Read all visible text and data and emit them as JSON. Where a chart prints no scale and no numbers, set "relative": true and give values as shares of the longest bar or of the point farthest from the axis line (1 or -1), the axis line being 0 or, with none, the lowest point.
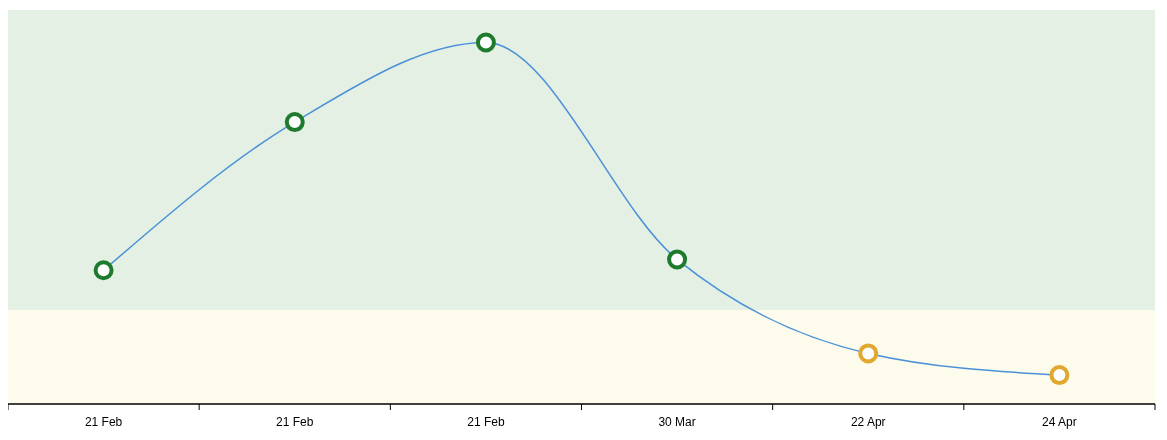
{
  "chart_data": {
    "type": "line",
    "relative": true,
    "categories": [
      "21 Feb",
      "21 Feb",
      "21 Feb",
      "30 Mar",
      "22 Apr",
      "24 Apr"
    ],
    "series": [
      {
        "color": "#4a90d9",
        "colors": [
          "#1e7b2e",
          "#1e7b2e",
          "#1e7b2e",
          "#1e7b2e",
          "#e0a82e",
          "#e0a82e"
        ],
        "values": [
          0.37,
          0.78,
          1,
          0.4,
          0.14,
          0.08
        ]
      }
    ],
    "marker": "circle",
    "line_style": "solid",
    "bands": [
      {
        "axis": "y",
        "from": 0,
        "to": 0.26,
        "color": "#fdfbeb"
      },
      {
        "axis": "y",
        "from": 0.26,
        "to": 1.09,
        "color": "#e3f0e3"
      }
    ]
  }
}
